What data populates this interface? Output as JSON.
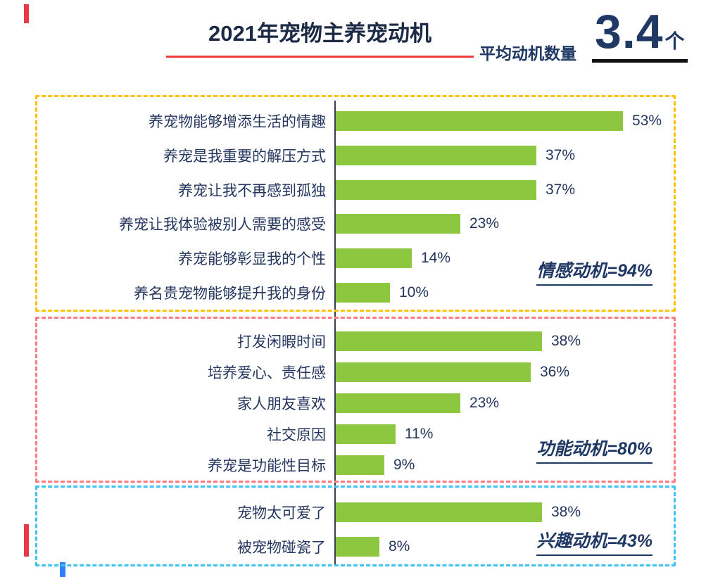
{
  "title": "2021年宠物主养宠动机",
  "average": {
    "label": "平均动机数量",
    "value": "3.4",
    "unit": "个"
  },
  "accent_colors": {
    "title_underline": "#f23b3b",
    "stat_underline": "#101010",
    "text_navy": "#1f3864"
  },
  "chart_data": {
    "type": "bar",
    "orientation": "horizontal",
    "unit": "%",
    "xlim": [
      0,
      60
    ],
    "bar_color": "#8dc63f",
    "title": "2021年宠物主养宠动机",
    "legend_position": "none",
    "grid": false,
    "groups": [
      {
        "name": "情感动机",
        "total_label": "情感动机=94%",
        "border_color": "#ffc000",
        "items": [
          {
            "label": "养宠物能够增添生活的情趣",
            "value": 53
          },
          {
            "label": "养宠是我重要的解压方式",
            "value": 37
          },
          {
            "label": "养宠让我不再感到孤独",
            "value": 37
          },
          {
            "label": "养宠让我体验被别人需要的感受",
            "value": 23
          },
          {
            "label": "养宠能够彰显我的个性",
            "value": 14
          },
          {
            "label": "养名贵宠物能够提升我的身份",
            "value": 10
          }
        ]
      },
      {
        "name": "功能动机",
        "total_label": "功能动机=80%",
        "border_color": "#ff7c80",
        "items": [
          {
            "label": "打发闲暇时间",
            "value": 38
          },
          {
            "label": "培养爱心、责任感",
            "value": 36
          },
          {
            "label": "家人朋友喜欢",
            "value": 23
          },
          {
            "label": "社交原因",
            "value": 11
          },
          {
            "label": "养宠是功能性目标",
            "value": 9
          }
        ]
      },
      {
        "name": "兴趣动机",
        "total_label": "兴趣动机=43%",
        "border_color": "#3ec3f0",
        "items": [
          {
            "label": "宠物太可爱了",
            "value": 38
          },
          {
            "label": "被宠物碰瓷了",
            "value": 8
          }
        ]
      }
    ]
  }
}
